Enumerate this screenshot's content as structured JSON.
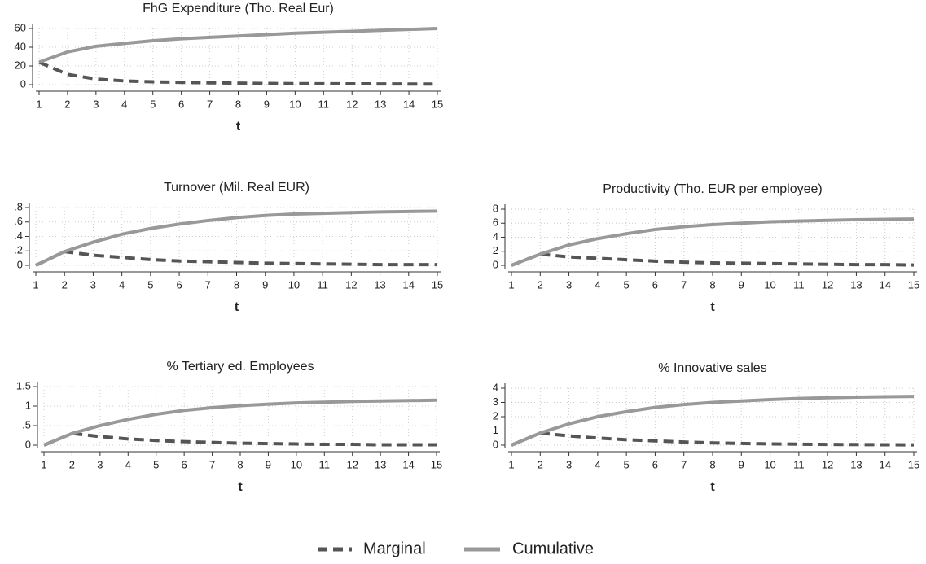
{
  "chart_data": [
    {
      "type": "line",
      "title": "FhG Expenditure (Tho. Real Eur)",
      "xlabel": "t",
      "x": [
        1,
        2,
        3,
        4,
        5,
        6,
        7,
        8,
        9,
        10,
        11,
        12,
        13,
        14,
        15
      ],
      "xlim": [
        1,
        15
      ],
      "xticks": [
        1,
        2,
        3,
        4,
        5,
        6,
        7,
        8,
        9,
        10,
        11,
        12,
        13,
        14,
        15
      ],
      "ylim": [
        0,
        60
      ],
      "yticks": [
        0,
        20,
        40,
        60
      ],
      "grid": true,
      "series": [
        {
          "name": "Marginal",
          "color": "#555555",
          "style": "dashed",
          "values": [
            24,
            11,
            6,
            4,
            3,
            2.5,
            2,
            1.6,
            1.3,
            1.1,
            1,
            0.9,
            0.8,
            0.7,
            0.6
          ]
        },
        {
          "name": "Cumulative",
          "color": "#999999",
          "style": "solid",
          "values": [
            24,
            35,
            41,
            44,
            47,
            49,
            50.5,
            52,
            53.5,
            55,
            56,
            57,
            58,
            59,
            60
          ]
        }
      ]
    },
    {
      "type": "line",
      "title": "Turnover (Mil. Real EUR)",
      "xlabel": "t",
      "x": [
        1,
        2,
        3,
        4,
        5,
        6,
        7,
        8,
        9,
        10,
        11,
        12,
        13,
        14,
        15
      ],
      "xlim": [
        1,
        15
      ],
      "xticks": [
        1,
        2,
        3,
        4,
        5,
        6,
        7,
        8,
        9,
        10,
        11,
        12,
        13,
        14,
        15
      ],
      "ylim": [
        0,
        0.8
      ],
      "yticks": [
        0,
        {
          "value": 0.2,
          "label": ".2"
        },
        {
          "value": 0.4,
          "label": ".4"
        },
        {
          "value": 0.6,
          "label": ".6"
        },
        {
          "value": 0.8,
          "label": ".8"
        }
      ],
      "grid": true,
      "series": [
        {
          "name": "Marginal",
          "color": "#555555",
          "style": "dashed",
          "values": [
            0,
            0.19,
            0.14,
            0.11,
            0.08,
            0.06,
            0.05,
            0.04,
            0.03,
            0.025,
            0.02,
            0.015,
            0.01,
            0.01,
            0.01
          ]
        },
        {
          "name": "Cumulative",
          "color": "#999999",
          "style": "solid",
          "values": [
            0,
            0.19,
            0.32,
            0.43,
            0.51,
            0.57,
            0.62,
            0.66,
            0.69,
            0.71,
            0.72,
            0.73,
            0.74,
            0.745,
            0.75
          ]
        }
      ]
    },
    {
      "type": "line",
      "title": "Productivity (Tho. EUR per employee)",
      "xlabel": "t",
      "x": [
        1,
        2,
        3,
        4,
        5,
        6,
        7,
        8,
        9,
        10,
        11,
        12,
        13,
        14,
        15
      ],
      "xlim": [
        1,
        15
      ],
      "xticks": [
        1,
        2,
        3,
        4,
        5,
        6,
        7,
        8,
        9,
        10,
        11,
        12,
        13,
        14,
        15
      ],
      "ylim": [
        0,
        8
      ],
      "yticks": [
        0,
        2,
        4,
        6,
        8
      ],
      "grid": true,
      "series": [
        {
          "name": "Marginal",
          "color": "#555555",
          "style": "dashed",
          "values": [
            0,
            1.6,
            1.2,
            1.0,
            0.8,
            0.6,
            0.45,
            0.35,
            0.3,
            0.25,
            0.2,
            0.15,
            0.1,
            0.1,
            0.05
          ]
        },
        {
          "name": "Cumulative",
          "color": "#999999",
          "style": "solid",
          "values": [
            0,
            1.6,
            2.9,
            3.8,
            4.5,
            5.1,
            5.5,
            5.8,
            6.0,
            6.2,
            6.3,
            6.4,
            6.5,
            6.55,
            6.6
          ]
        }
      ]
    },
    {
      "type": "line",
      "title": "% Tertiary ed. Employees",
      "xlabel": "t",
      "x": [
        1,
        2,
        3,
        4,
        5,
        6,
        7,
        8,
        9,
        10,
        11,
        12,
        13,
        14,
        15
      ],
      "xlim": [
        1,
        15
      ],
      "xticks": [
        1,
        2,
        3,
        4,
        5,
        6,
        7,
        8,
        9,
        10,
        11,
        12,
        13,
        14,
        15
      ],
      "ylim": [
        0,
        1.5
      ],
      "yticks": [
        0,
        {
          "value": 0.5,
          "label": ".5"
        },
        1,
        1.5
      ],
      "grid": true,
      "series": [
        {
          "name": "Marginal",
          "color": "#555555",
          "style": "dashed",
          "values": [
            0,
            0.3,
            0.22,
            0.16,
            0.12,
            0.09,
            0.07,
            0.05,
            0.04,
            0.03,
            0.02,
            0.02,
            0.01,
            0.01,
            0.01
          ]
        },
        {
          "name": "Cumulative",
          "color": "#999999",
          "style": "solid",
          "values": [
            0,
            0.3,
            0.5,
            0.66,
            0.79,
            0.89,
            0.96,
            1.01,
            1.05,
            1.08,
            1.1,
            1.12,
            1.13,
            1.14,
            1.15
          ]
        }
      ]
    },
    {
      "type": "line",
      "title": "% Innovative sales",
      "xlabel": "t",
      "x": [
        1,
        2,
        3,
        4,
        5,
        6,
        7,
        8,
        9,
        10,
        11,
        12,
        13,
        14,
        15
      ],
      "xlim": [
        1,
        15
      ],
      "xticks": [
        1,
        2,
        3,
        4,
        5,
        6,
        7,
        8,
        9,
        10,
        11,
        12,
        13,
        14,
        15
      ],
      "ylim": [
        0,
        4
      ],
      "yticks": [
        0,
        1,
        2,
        3,
        4
      ],
      "grid": true,
      "series": [
        {
          "name": "Marginal",
          "color": "#555555",
          "style": "dashed",
          "values": [
            0,
            0.85,
            0.65,
            0.5,
            0.38,
            0.3,
            0.22,
            0.16,
            0.12,
            0.09,
            0.07,
            0.05,
            0.04,
            0.03,
            0.02
          ]
        },
        {
          "name": "Cumulative",
          "color": "#999999",
          "style": "solid",
          "values": [
            0,
            0.85,
            1.5,
            2.0,
            2.35,
            2.65,
            2.85,
            3.0,
            3.1,
            3.2,
            3.28,
            3.33,
            3.37,
            3.4,
            3.42
          ]
        }
      ]
    }
  ]
}
